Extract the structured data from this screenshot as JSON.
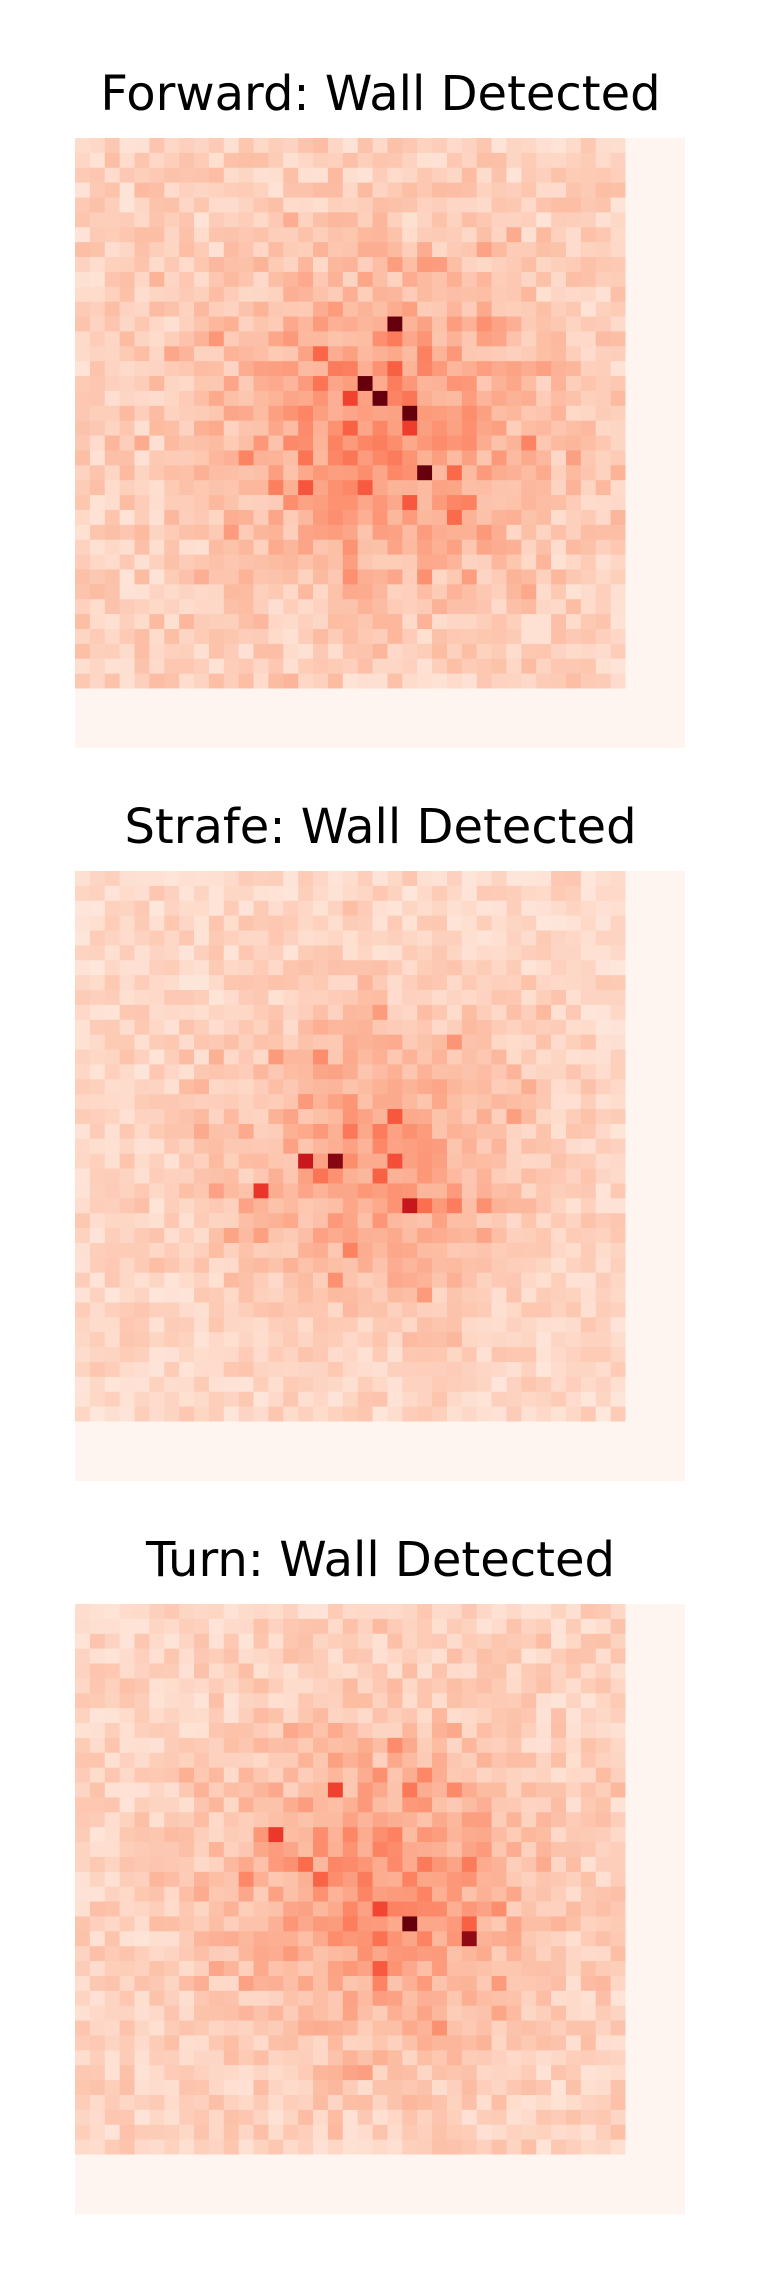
{
  "figure": {
    "panels": [
      {
        "title": "Forward: Wall Detected",
        "seed": 11,
        "intensity": 1.0
      },
      {
        "title": "Strafe: Wall Detected",
        "seed": 23,
        "intensity": 0.85
      },
      {
        "title": "Turn: Wall Detected",
        "seed": 37,
        "intensity": 0.95
      }
    ]
  },
  "chart_data": [
    {
      "type": "heatmap",
      "title": "Forward: Wall Detected",
      "rows": 41,
      "cols": 41,
      "colormap": "Reds",
      "hot_region": "center"
    },
    {
      "type": "heatmap",
      "title": "Strafe: Wall Detected",
      "rows": 41,
      "cols": 41,
      "colormap": "Reds",
      "hot_region": "center"
    },
    {
      "type": "heatmap",
      "title": "Turn: Wall Detected",
      "rows": 41,
      "cols": 41,
      "colormap": "Reds",
      "hot_region": "center"
    }
  ]
}
